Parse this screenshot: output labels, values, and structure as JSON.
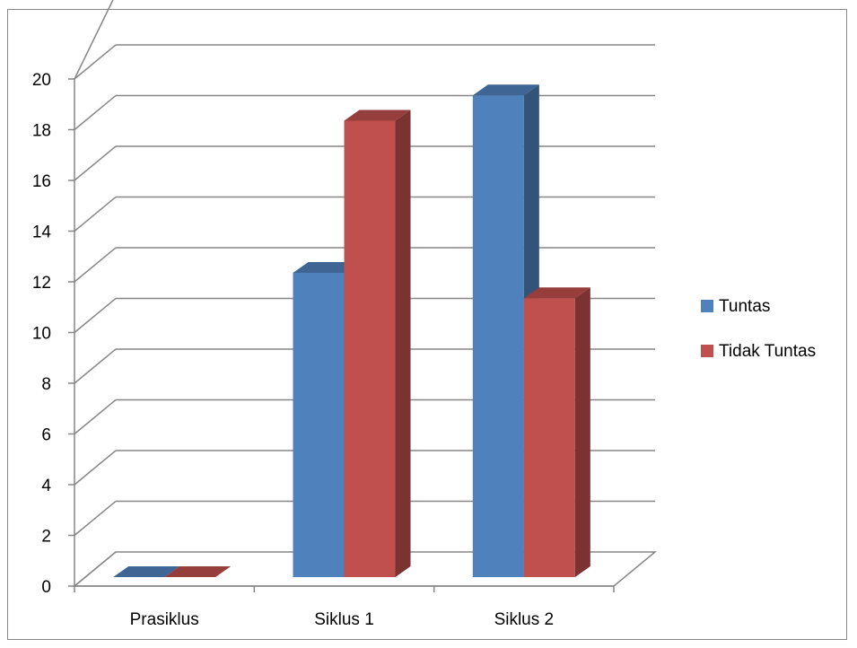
{
  "chart_data": {
    "type": "bar",
    "categories": [
      "Prasiklus",
      "Siklus 1",
      "Siklus 2"
    ],
    "series": [
      {
        "name": "Tuntas",
        "values": [
          0,
          12,
          19
        ],
        "color": "#4F81BD"
      },
      {
        "name": "Tidak Tuntas",
        "values": [
          0,
          18,
          11
        ],
        "color": "#C0504D"
      }
    ],
    "y_ticks": [
      "0",
      "2",
      "4",
      "6",
      "8",
      "10",
      "12",
      "14",
      "16",
      "18",
      "20"
    ],
    "ylim": [
      0,
      20
    ],
    "grid": true,
    "legend": "right",
    "style": "3d-clustered-column"
  }
}
